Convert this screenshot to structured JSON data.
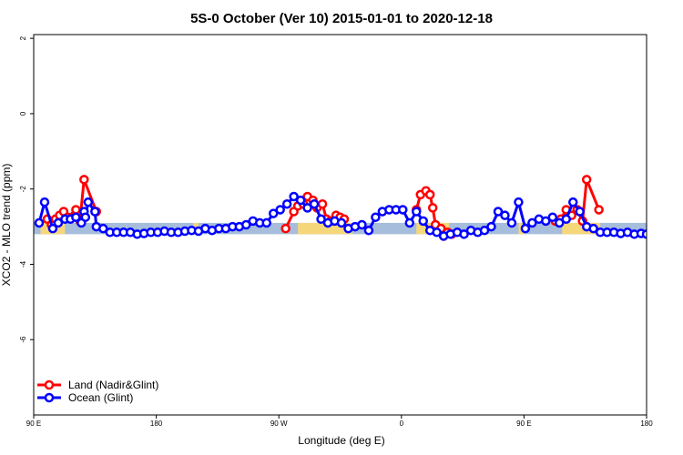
{
  "chart_data": {
    "type": "line",
    "title": "5S-0 October (Ver 10)   2015-01-01 to 2020-12-18",
    "xlabel": "Longitude (deg E)",
    "ylabel": "XCO2 - MLO trend (ppm)",
    "xlim": [
      90,
      540
    ],
    "ylim": [
      -8,
      2.1
    ],
    "x_ticks": [
      {
        "value": 90,
        "label": "90 E"
      },
      {
        "value": 180,
        "label": "180"
      },
      {
        "value": 270,
        "label": "90 W"
      },
      {
        "value": 360,
        "label": "0"
      },
      {
        "value": 450,
        "label": "90 E"
      },
      {
        "value": 540,
        "label": "180"
      }
    ],
    "y_ticks": [
      {
        "value": 2,
        "label": "2"
      },
      {
        "value": 0,
        "label": "0"
      },
      {
        "value": -2,
        "label": "-2"
      },
      {
        "value": -4,
        "label": "-4"
      },
      {
        "value": -6,
        "label": "-6"
      }
    ],
    "band": {
      "y_range": [
        -3.2,
        -2.9
      ],
      "ocean_color": "#a6bddb",
      "land_color": "#f5d77a",
      "land_segments": [
        [
          95,
          113
        ],
        [
          207,
          211
        ],
        [
          284,
          324
        ],
        [
          371,
          395
        ],
        [
          446,
          450
        ],
        [
          478,
          506
        ]
      ]
    },
    "series": [
      {
        "name": "Land (Nadir&Glint)",
        "color": "#ff0000",
        "points": [
          [
            100,
            -2.8
          ],
          [
            103,
            -2.95
          ],
          [
            106,
            -2.8
          ],
          [
            109,
            -2.7
          ],
          [
            112,
            -2.6
          ],
          [
            115,
            -2.75
          ],
          [
            121,
            -2.55
          ],
          [
            124,
            -2.85
          ],
          [
            127,
            -1.75
          ],
          [
            136,
            -2.6
          ]
        ],
        "points2": [
          [
            275,
            -3.05
          ],
          [
            281,
            -2.6
          ],
          [
            284,
            -2.45
          ],
          [
            288,
            -2.4
          ],
          [
            291,
            -2.2
          ],
          [
            295,
            -2.3
          ],
          [
            298,
            -2.5
          ],
          [
            302,
            -2.4
          ],
          [
            305,
            -2.8
          ],
          [
            308,
            -2.85
          ],
          [
            312,
            -2.7
          ],
          [
            315,
            -2.75
          ],
          [
            318,
            -2.8
          ]
        ],
        "points3": [
          [
            371,
            -2.55
          ],
          [
            374,
            -2.15
          ],
          [
            378,
            -2.05
          ],
          [
            381,
            -2.15
          ],
          [
            383,
            -2.5
          ],
          [
            385,
            -2.95
          ],
          [
            389,
            -3.05
          ],
          [
            391,
            -3.25
          ],
          [
            394,
            -3.15
          ],
          [
            397,
            -3.2
          ]
        ],
        "points4": [
          [
            473,
            -2.85
          ],
          [
            477,
            -2.8
          ],
          [
            481,
            -2.55
          ],
          [
            485,
            -2.7
          ],
          [
            489,
            -2.55
          ],
          [
            493,
            -2.85
          ],
          [
            496,
            -1.75
          ],
          [
            505,
            -2.55
          ]
        ]
      },
      {
        "name": "Ocean (Glint)",
        "color": "#0000ff",
        "points": [
          [
            94,
            -2.9
          ],
          [
            98,
            -2.35
          ],
          [
            104,
            -3.05
          ],
          [
            108,
            -2.9
          ],
          [
            113,
            -2.8
          ],
          [
            117,
            -2.8
          ],
          [
            121,
            -2.75
          ],
          [
            125,
            -2.9
          ],
          [
            127,
            -2.6
          ],
          [
            128,
            -2.75
          ],
          [
            130,
            -2.35
          ],
          [
            135,
            -2.6
          ],
          [
            136,
            -3.0
          ],
          [
            141,
            -3.05
          ],
          [
            146,
            -3.15
          ],
          [
            151,
            -3.15
          ],
          [
            156,
            -3.15
          ],
          [
            161,
            -3.15
          ],
          [
            166,
            -3.2
          ],
          [
            171,
            -3.18
          ],
          [
            176,
            -3.15
          ],
          [
            181,
            -3.15
          ],
          [
            186,
            -3.12
          ],
          [
            191,
            -3.15
          ],
          [
            196,
            -3.15
          ],
          [
            201,
            -3.12
          ],
          [
            206,
            -3.1
          ],
          [
            211,
            -3.12
          ],
          [
            216,
            -3.05
          ],
          [
            221,
            -3.1
          ],
          [
            226,
            -3.05
          ],
          [
            231,
            -3.05
          ],
          [
            236,
            -3.0
          ],
          [
            241,
            -3.0
          ],
          [
            246,
            -2.95
          ],
          [
            251,
            -2.85
          ],
          [
            256,
            -2.9
          ],
          [
            261,
            -2.9
          ],
          [
            266,
            -2.65
          ],
          [
            271,
            -2.55
          ],
          [
            276,
            -2.4
          ],
          [
            281,
            -2.2
          ],
          [
            286,
            -2.3
          ],
          [
            291,
            -2.5
          ],
          [
            296,
            -2.4
          ],
          [
            301,
            -2.8
          ],
          [
            306,
            -2.9
          ],
          [
            311,
            -2.85
          ],
          [
            316,
            -2.9
          ],
          [
            321,
            -3.05
          ],
          [
            326,
            -3.0
          ],
          [
            331,
            -2.95
          ],
          [
            336,
            -3.1
          ],
          [
            341,
            -2.75
          ],
          [
            346,
            -2.6
          ],
          [
            351,
            -2.55
          ],
          [
            356,
            -2.55
          ],
          [
            361,
            -2.55
          ],
          [
            366,
            -2.9
          ],
          [
            371,
            -2.6
          ],
          [
            376,
            -2.85
          ],
          [
            381,
            -3.1
          ],
          [
            386,
            -3.15
          ],
          [
            391,
            -3.25
          ],
          [
            396,
            -3.2
          ],
          [
            401,
            -3.15
          ],
          [
            406,
            -3.2
          ],
          [
            411,
            -3.1
          ],
          [
            416,
            -3.15
          ],
          [
            421,
            -3.1
          ],
          [
            426,
            -3.0
          ],
          [
            431,
            -2.6
          ],
          [
            436,
            -2.7
          ],
          [
            441,
            -2.9
          ],
          [
            446,
            -2.35
          ],
          [
            451,
            -3.05
          ],
          [
            456,
            -2.9
          ],
          [
            461,
            -2.8
          ],
          [
            466,
            -2.85
          ],
          [
            471,
            -2.75
          ],
          [
            476,
            -2.9
          ],
          [
            481,
            -2.8
          ],
          [
            486,
            -2.35
          ],
          [
            491,
            -2.6
          ],
          [
            496,
            -3.0
          ],
          [
            501,
            -3.05
          ],
          [
            506,
            -3.15
          ],
          [
            511,
            -3.15
          ],
          [
            516,
            -3.15
          ],
          [
            521,
            -3.18
          ],
          [
            526,
            -3.15
          ],
          [
            531,
            -3.2
          ],
          [
            536,
            -3.18
          ],
          [
            540,
            -3.2
          ]
        ]
      }
    ],
    "legend": {
      "placement": "bottom-left",
      "entries": [
        "Land (Nadir&Glint)",
        "Ocean (Glint)"
      ]
    }
  }
}
